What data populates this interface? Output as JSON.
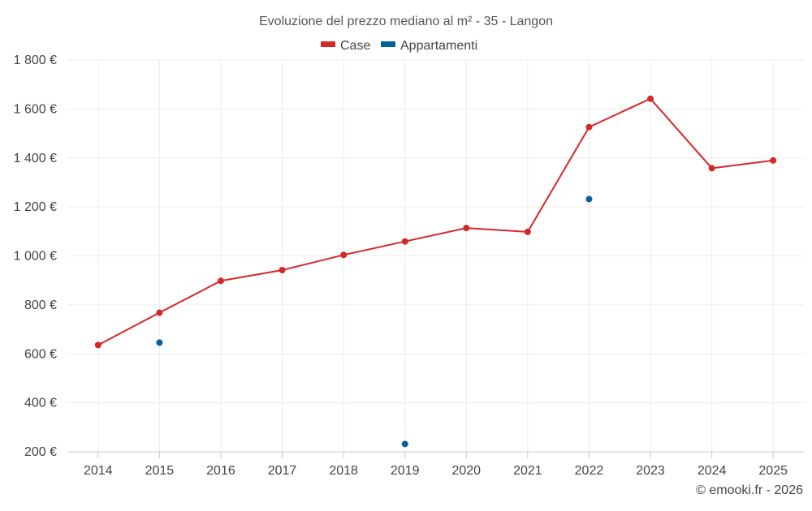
{
  "chart_data": {
    "type": "line",
    "title": "Evoluzione del prezzo mediano al m² - 35 - Langon",
    "categories": [
      "2014",
      "2015",
      "2016",
      "2017",
      "2018",
      "2019",
      "2020",
      "2021",
      "2022",
      "2023",
      "2024",
      "2025"
    ],
    "series": [
      {
        "name": "Case",
        "color": "#d62728",
        "values": [
          636,
          768,
          898,
          942,
          1004,
          1059,
          1114,
          1098,
          1526,
          1642,
          1358,
          1390
        ]
      },
      {
        "name": "Appartamenti",
        "color": "#04619b",
        "values": [
          null,
          646,
          null,
          null,
          null,
          232,
          null,
          null,
          1232,
          null,
          null,
          null
        ]
      }
    ],
    "ylim": [
      200,
      1800
    ],
    "yticks": [
      200,
      400,
      600,
      800,
      1000,
      1200,
      1400,
      1600,
      1800
    ],
    "ytick_labels": [
      "200 €",
      "400 €",
      "600 €",
      "800 €",
      "1 000 €",
      "1 200 €",
      "1 400 €",
      "1 600 €",
      "1 800 €"
    ],
    "legend_position": "top-center",
    "grid": true,
    "xlabel": "",
    "ylabel": ""
  },
  "footer": {
    "credit": "© emooki.fr - 2026"
  }
}
